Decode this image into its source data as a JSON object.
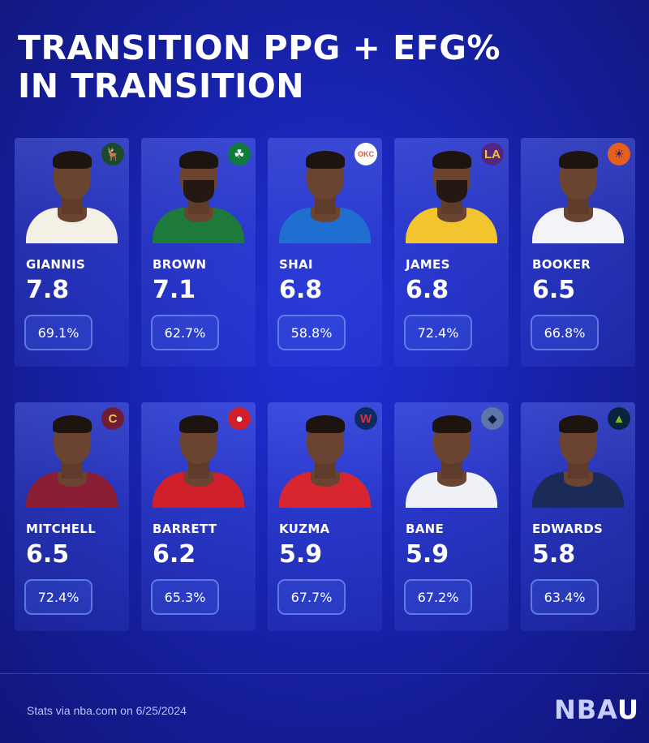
{
  "title_line1": "TRANSITION PPG + EFG%",
  "title_line2": "IN TRANSITION",
  "players": [
    {
      "name": "GIANNIS",
      "ppg": "7.8",
      "efg": "69.1%",
      "team_logo": "bucks-logo-icon",
      "jersey": "#f3f1e6",
      "logo_bg": "#1c4a2e",
      "logo_fg": "#e8dcbf",
      "logo_glyph": "🦌"
    },
    {
      "name": "BROWN",
      "ppg": "7.1",
      "efg": "62.7%",
      "team_logo": "celtics-logo-icon",
      "jersey": "#1d7a3b",
      "logo_bg": "#107a3a",
      "logo_fg": "#ffffff",
      "logo_glyph": "☘"
    },
    {
      "name": "SHAI",
      "ppg": "6.8",
      "efg": "58.8%",
      "team_logo": "thunder-logo-icon",
      "jersey": "#1f6fd1",
      "logo_bg": "#ffffff",
      "logo_fg": "#e6542b",
      "logo_glyph": "OKC"
    },
    {
      "name": "JAMES",
      "ppg": "6.8",
      "efg": "72.4%",
      "team_logo": "lakers-logo-icon",
      "jersey": "#f2c52e",
      "logo_bg": "#552583",
      "logo_fg": "#f2c52e",
      "logo_glyph": "LA"
    },
    {
      "name": "BOOKER",
      "ppg": "6.5",
      "efg": "66.8%",
      "team_logo": "suns-logo-icon",
      "jersey": "#f4f3f7",
      "logo_bg": "#e56020",
      "logo_fg": "#3b1a60",
      "logo_glyph": "☀"
    },
    {
      "name": "MITCHELL",
      "ppg": "6.5",
      "efg": "72.4%",
      "team_logo": "cavaliers-logo-icon",
      "jersey": "#8a1e34",
      "logo_bg": "#6f1d35",
      "logo_fg": "#f3c04e",
      "logo_glyph": "C"
    },
    {
      "name": "BARRETT",
      "ppg": "6.2",
      "efg": "65.3%",
      "team_logo": "raptors-logo-icon",
      "jersey": "#cf1f2b",
      "logo_bg": "#cf1f2b",
      "logo_fg": "#ffffff",
      "logo_glyph": "●"
    },
    {
      "name": "KUZMA",
      "ppg": "5.9",
      "efg": "67.7%",
      "team_logo": "wizards-logo-icon",
      "jersey": "#d7262f",
      "logo_bg": "#0e2a62",
      "logo_fg": "#e12c37",
      "logo_glyph": "W"
    },
    {
      "name": "BANE",
      "ppg": "5.9",
      "efg": "67.2%",
      "team_logo": "grizzlies-logo-icon",
      "jersey": "#eff1f6",
      "logo_bg": "#5d76a9",
      "logo_fg": "#12173f",
      "logo_glyph": "◆"
    },
    {
      "name": "EDWARDS",
      "ppg": "5.8",
      "efg": "63.4%",
      "team_logo": "timberwolves-logo-icon",
      "jersey": "#1b2b57",
      "logo_bg": "#0c2340",
      "logo_fg": "#78be20",
      "logo_glyph": "▲"
    }
  ],
  "footer": {
    "stats_note": "Stats via nba.com on 6/25/2024",
    "brand_left": "NBA",
    "brand_right": "U"
  }
}
